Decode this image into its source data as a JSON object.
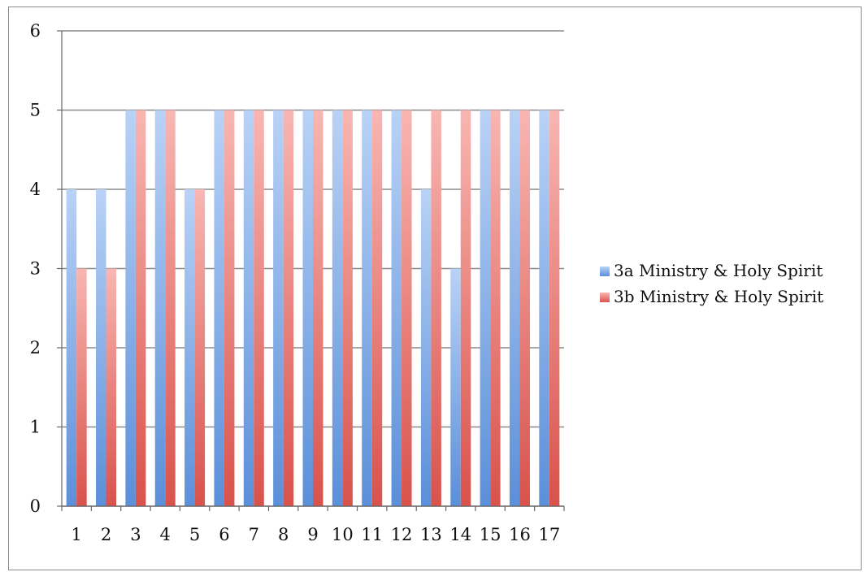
{
  "chart_data": {
    "type": "bar",
    "title": "",
    "xlabel": "",
    "ylabel": "",
    "categories": [
      "1",
      "2",
      "3",
      "4",
      "5",
      "6",
      "7",
      "8",
      "9",
      "10",
      "11",
      "12",
      "13",
      "14",
      "15",
      "16",
      "17"
    ],
    "series": [
      {
        "name": "3a Ministry & Holy Spirit",
        "color": "#5b8fd9",
        "color_light": "#b9d2f6",
        "values": [
          4,
          4,
          5,
          5,
          4,
          5,
          5,
          5,
          5,
          5,
          5,
          5,
          4,
          3,
          5,
          5,
          5
        ]
      },
      {
        "name": "3b Ministry & Holy Spirit",
        "color": "#d9524c",
        "color_light": "#f8b6b2",
        "values": [
          3,
          3,
          5,
          5,
          4,
          5,
          5,
          5,
          5,
          5,
          5,
          5,
          5,
          5,
          5,
          5,
          5
        ]
      }
    ],
    "ylim": [
      0,
      6
    ],
    "yticks": [
      0,
      1,
      2,
      3,
      4,
      5,
      6
    ],
    "grid": true,
    "legend_position": "right"
  }
}
